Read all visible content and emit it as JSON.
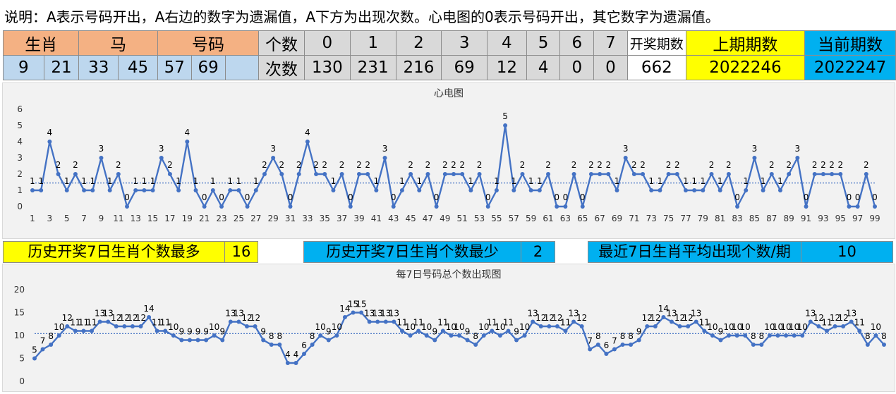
{
  "note": "说明：A表示号码开出，A右边的数字为遗漏值，A下方为出现次数。心电图的0表示号码开出，其它数字为遗漏值。",
  "header": {
    "zodiac_label": "生肖",
    "animal": "马",
    "code_label": "号码",
    "count_label": "个数",
    "times_label": "次数",
    "draws_label": "开奖期数",
    "prev_label": "上期期数",
    "curr_label": "当前期数"
  },
  "numbers": [
    "9",
    "21",
    "33",
    "45",
    "57",
    "69",
    ""
  ],
  "count_heads": [
    "0",
    "1",
    "2",
    "3",
    "4",
    "5",
    "6",
    "7"
  ],
  "count_values": [
    "130",
    "231",
    "216",
    "69",
    "12",
    "4",
    "0",
    "0"
  ],
  "draw_count": "662",
  "prev_period": "2022246",
  "curr_period": "2022247",
  "chart1": {
    "title": "心电图",
    "type": "line",
    "ylim": [
      0,
      6
    ],
    "yticks": [
      "0",
      "1",
      "2",
      "3",
      "4",
      "5",
      "6"
    ],
    "xticks": [
      "1",
      "3",
      "5",
      "7",
      "9",
      "11",
      "13",
      "15",
      "17",
      "19",
      "21",
      "23",
      "25",
      "27",
      "29",
      "31",
      "33",
      "35",
      "37",
      "39",
      "41",
      "43",
      "45",
      "47",
      "49",
      "51",
      "53",
      "55",
      "57",
      "59",
      "61",
      "63",
      "65",
      "67",
      "69",
      "71",
      "73",
      "75",
      "77",
      "79",
      "81",
      "83",
      "85",
      "87",
      "89",
      "91",
      "93",
      "95",
      "97",
      "99"
    ],
    "values": [
      1,
      1,
      4,
      2,
      1,
      2,
      1,
      1,
      3,
      1,
      2,
      0,
      1,
      1,
      1,
      3,
      2,
      1,
      4,
      1,
      0,
      1,
      0,
      1,
      1,
      0,
      1,
      2,
      3,
      2,
      0,
      2,
      4,
      2,
      2,
      1,
      2,
      0,
      2,
      2,
      1,
      3,
      0,
      1,
      2,
      1,
      2,
      0,
      2,
      2,
      2,
      1,
      2,
      0,
      1,
      5,
      1,
      2,
      1,
      1,
      2,
      0,
      0,
      2,
      0,
      2,
      2,
      2,
      1,
      3,
      2,
      2,
      1,
      1,
      2,
      2,
      1,
      1,
      1,
      2,
      1,
      2,
      0,
      1,
      3,
      1,
      2,
      1,
      2,
      3,
      0,
      2,
      2,
      2,
      2,
      0,
      0,
      2,
      0
    ],
    "avg": 1.45
  },
  "stats": {
    "max_label": "历史开奖7日生肖个数最多",
    "max_value": "16",
    "min_label": "历史开奖7日生肖个数最少",
    "min_value": "2",
    "avg_label": "最近7日生肖平均出现个数/期",
    "avg_value": "10"
  },
  "chart2": {
    "title": "每7日号码总个数出现图",
    "type": "line",
    "ylim": [
      0,
      20
    ],
    "yticks": [
      "0",
      "5",
      "10",
      "15",
      "20"
    ],
    "values": [
      5,
      7,
      8,
      10,
      12,
      11,
      11,
      11,
      13,
      13,
      12,
      12,
      12,
      12,
      14,
      11,
      11,
      10,
      9,
      9,
      9,
      9,
      10,
      9,
      13,
      13,
      12,
      12,
      9,
      8,
      8,
      4,
      4,
      6,
      8,
      10,
      9,
      10,
      14,
      15,
      15,
      13,
      13,
      13,
      13,
      11,
      10,
      11,
      10,
      9,
      11,
      10,
      10,
      9,
      8,
      10,
      11,
      10,
      11,
      9,
      10,
      13,
      12,
      12,
      12,
      11,
      13,
      12,
      7,
      8,
      6,
      7,
      8,
      8,
      9,
      12,
      12,
      14,
      13,
      12,
      12,
      13,
      11,
      10,
      9,
      10,
      10,
      10,
      8,
      8,
      10,
      10,
      10,
      10,
      10,
      13,
      12,
      11,
      12,
      12,
      13,
      11,
      8,
      10,
      8
    ],
    "avg": 10.4
  },
  "colors": {
    "line": "#4472c4",
    "orange": "#f4b183",
    "blue_cell": "#bdd7ee",
    "yellow": "#ffff00",
    "cyan": "#00b0f0"
  }
}
